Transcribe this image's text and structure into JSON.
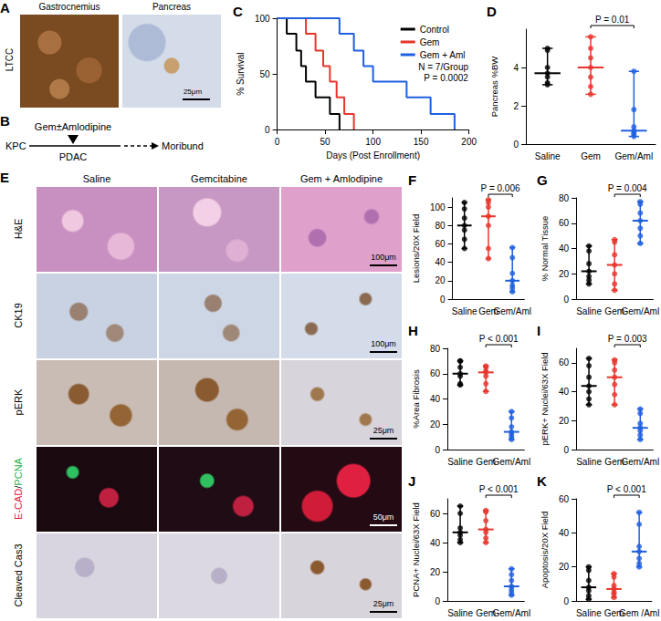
{
  "figure": {
    "A": {
      "panel": "A",
      "row_label": "LTCC",
      "columns": [
        "Gastrocnemius",
        "Pancreas"
      ],
      "scale_bar": "25μm"
    },
    "B": {
      "panel": "B",
      "start": "KPC",
      "stage": "PDAC",
      "treatment": "Gem±Amlodipine",
      "end": "Moribund"
    },
    "E": {
      "panel": "E",
      "columns": [
        "Saline",
        "Gemcitabine",
        "Gem + Amlodipine"
      ],
      "rows": [
        {
          "label_parts": [
            "H&E"
          ],
          "scale_bar": "100μm"
        },
        {
          "label_parts": [
            "CK19"
          ],
          "scale_bar": "100μm"
        },
        {
          "label_parts": [
            "pERK"
          ],
          "scale_bar": "25μm"
        },
        {
          "label_parts": [
            "E-CAD",
            "/",
            "PCNA"
          ],
          "scale_bar": "50μm"
        },
        {
          "label_parts": [
            "Cleaved Cas3"
          ],
          "scale_bar": "25μm"
        }
      ]
    }
  },
  "chart_data": [
    {
      "panel": "C",
      "type": "step",
      "xlabel": "Days (Post Enrollment)",
      "ylabel": "% Survival",
      "xlim": [
        0,
        200
      ],
      "xticks": [
        0,
        50,
        100,
        150,
        200
      ],
      "ylim": [
        0,
        100
      ],
      "yticks": [
        0,
        50,
        100
      ],
      "legend": "upper right",
      "grid": false,
      "annotations": [
        "N = 7/Group",
        "P = 0.0002"
      ],
      "series": [
        {
          "name": "Control",
          "color": "#000000",
          "x": [
            0,
            10,
            20,
            25,
            30,
            40,
            55,
            65
          ],
          "values": [
            100,
            86,
            71,
            57,
            43,
            29,
            14,
            0
          ]
        },
        {
          "name": "Gem",
          "color": "#e8352b",
          "x": [
            0,
            30,
            40,
            48,
            55,
            62,
            70,
            80
          ],
          "values": [
            100,
            86,
            71,
            57,
            43,
            29,
            14,
            0
          ]
        },
        {
          "name": "Gem + Aml",
          "color": "#1f5fe0",
          "x": [
            0,
            65,
            80,
            90,
            100,
            135,
            160,
            185
          ],
          "values": [
            100,
            86,
            71,
            57,
            43,
            29,
            14,
            0
          ]
        }
      ]
    },
    {
      "panel": "D",
      "type": "dot",
      "ylabel": "Pancreas %BW",
      "categories": [
        "Saline",
        "Gem",
        "Gem/Aml"
      ],
      "colors": [
        "#000000",
        "#e8352b",
        "#1f5fe0"
      ],
      "ylim": [
        0,
        6
      ],
      "yticks": [
        0,
        2,
        4
      ],
      "grid": false,
      "annotation": "P = 0.01",
      "values": [
        [
          3.1,
          3.2,
          3.5,
          3.7,
          4.0,
          4.9,
          5.0
        ],
        [
          2.6,
          3.0,
          3.5,
          4.0,
          4.5,
          5.0,
          5.6
        ],
        [
          0.4,
          0.5,
          0.6,
          0.7,
          0.9,
          1.8,
          3.8
        ]
      ],
      "medians": [
        3.7,
        4.0,
        0.7
      ],
      "ranges": [
        [
          3.1,
          5.0
        ],
        [
          2.6,
          5.6
        ],
        [
          0.4,
          3.8
        ]
      ]
    },
    {
      "panel": "F",
      "type": "dot",
      "ylabel": "Lesions/20X Field",
      "categories": [
        "Saline",
        "Gem",
        "Gem/Aml"
      ],
      "colors": [
        "#000000",
        "#e8352b",
        "#1f5fe0"
      ],
      "ylim": [
        0,
        110
      ],
      "yticks": [
        0,
        20,
        40,
        60,
        80,
        100
      ],
      "grid": false,
      "annotation": "P = 0.006",
      "values": [
        [
          55,
          65,
          75,
          80,
          88,
          98,
          105
        ],
        [
          44,
          55,
          80,
          90,
          100,
          105,
          108
        ],
        [
          8,
          12,
          15,
          20,
          28,
          45,
          56
        ]
      ],
      "medians": [
        80,
        90,
        20
      ],
      "ranges": [
        [
          55,
          105
        ],
        [
          44,
          108
        ],
        [
          8,
          56
        ]
      ]
    },
    {
      "panel": "G",
      "type": "dot",
      "ylabel": "% Normal Tissue",
      "categories": [
        "Saline",
        "Gem",
        "Gem/Aml"
      ],
      "colors": [
        "#000000",
        "#e8352b",
        "#1f5fe0"
      ],
      "ylim": [
        0,
        80
      ],
      "yticks": [
        0,
        20,
        40,
        60,
        80
      ],
      "grid": false,
      "annotation": "P = 0.004",
      "values": [
        [
          12,
          15,
          18,
          22,
          28,
          38,
          42
        ],
        [
          7,
          12,
          20,
          27,
          35,
          45,
          47
        ],
        [
          44,
          50,
          56,
          62,
          68,
          75,
          77
        ]
      ],
      "medians": [
        22,
        27,
        62
      ],
      "ranges": [
        [
          12,
          42
        ],
        [
          7,
          47
        ],
        [
          44,
          77
        ]
      ]
    },
    {
      "panel": "H",
      "type": "dot",
      "ylabel": "%Area Fibrosis",
      "categories": [
        "Saline",
        "Gem",
        "Gem/Aml"
      ],
      "colors": [
        "#000000",
        "#e8352b",
        "#1f5fe0"
      ],
      "ylim": [
        0,
        80
      ],
      "yticks": [
        0,
        20,
        40,
        60,
        80
      ],
      "grid": false,
      "annotation": "P < 0.001",
      "values": [
        [
          51,
          52,
          58,
          60,
          65,
          70,
          70
        ],
        [
          46,
          52,
          58,
          61,
          62,
          65,
          66
        ],
        [
          8,
          10,
          12,
          14,
          18,
          25,
          30
        ]
      ],
      "medians": [
        60,
        61,
        14
      ],
      "ranges": [
        [
          51,
          70
        ],
        [
          46,
          66
        ],
        [
          8,
          30
        ]
      ]
    },
    {
      "panel": "I",
      "type": "dot",
      "ylabel": "pERK+ Nuclei/63X Field",
      "categories": [
        "Saline",
        "Gem",
        "Gem/Aml"
      ],
      "colors": [
        "#000000",
        "#e8352b",
        "#1f5fe0"
      ],
      "ylim": [
        0,
        70
      ],
      "yticks": [
        0,
        20,
        40,
        60
      ],
      "grid": false,
      "annotation": "P = 0.003",
      "values": [
        [
          31,
          35,
          40,
          44,
          50,
          58,
          63
        ],
        [
          31,
          38,
          45,
          50,
          55,
          60,
          62
        ],
        [
          7,
          10,
          13,
          15,
          18,
          25,
          28
        ]
      ],
      "medians": [
        44,
        50,
        15
      ],
      "ranges": [
        [
          31,
          63
        ],
        [
          31,
          62
        ],
        [
          7,
          28
        ]
      ]
    },
    {
      "panel": "J",
      "type": "dot",
      "ylabel": "PCNA+ Nuclei/63X Field",
      "categories": [
        "Saline",
        "Gem",
        "Gem/Aml"
      ],
      "colors": [
        "#000000",
        "#e8352b",
        "#1f5fe0"
      ],
      "ylim": [
        0,
        70
      ],
      "yticks": [
        0,
        20,
        40,
        60
      ],
      "grid": false,
      "annotation": "P < 0.001",
      "values": [
        [
          40,
          42,
          45,
          47,
          50,
          60,
          65
        ],
        [
          40,
          43,
          47,
          49,
          55,
          61,
          62
        ],
        [
          4,
          6,
          8,
          10,
          14,
          18,
          22
        ]
      ],
      "medians": [
        47,
        49,
        10
      ],
      "ranges": [
        [
          40,
          65
        ],
        [
          40,
          62
        ],
        [
          4,
          22
        ]
      ]
    },
    {
      "panel": "K",
      "type": "dot",
      "ylabel": "Apoptosis/20X Field",
      "categories": [
        "Saline",
        "Gem",
        "Gem /Aml"
      ],
      "colors": [
        "#000000",
        "#e8352b",
        "#1f5fe0"
      ],
      "ylim": [
        0,
        60
      ],
      "yticks": [
        0,
        20,
        40,
        60
      ],
      "grid": false,
      "annotation": "P < 0.001",
      "values": [
        [
          1,
          3,
          6,
          8,
          12,
          18,
          20
        ],
        [
          2,
          4,
          5,
          7,
          9,
          14,
          16
        ],
        [
          20,
          22,
          25,
          29,
          32,
          45,
          52
        ]
      ],
      "medians": [
        8,
        7,
        29
      ],
      "ranges": [
        [
          1,
          20
        ],
        [
          2,
          16
        ],
        [
          20,
          52
        ]
      ]
    }
  ]
}
